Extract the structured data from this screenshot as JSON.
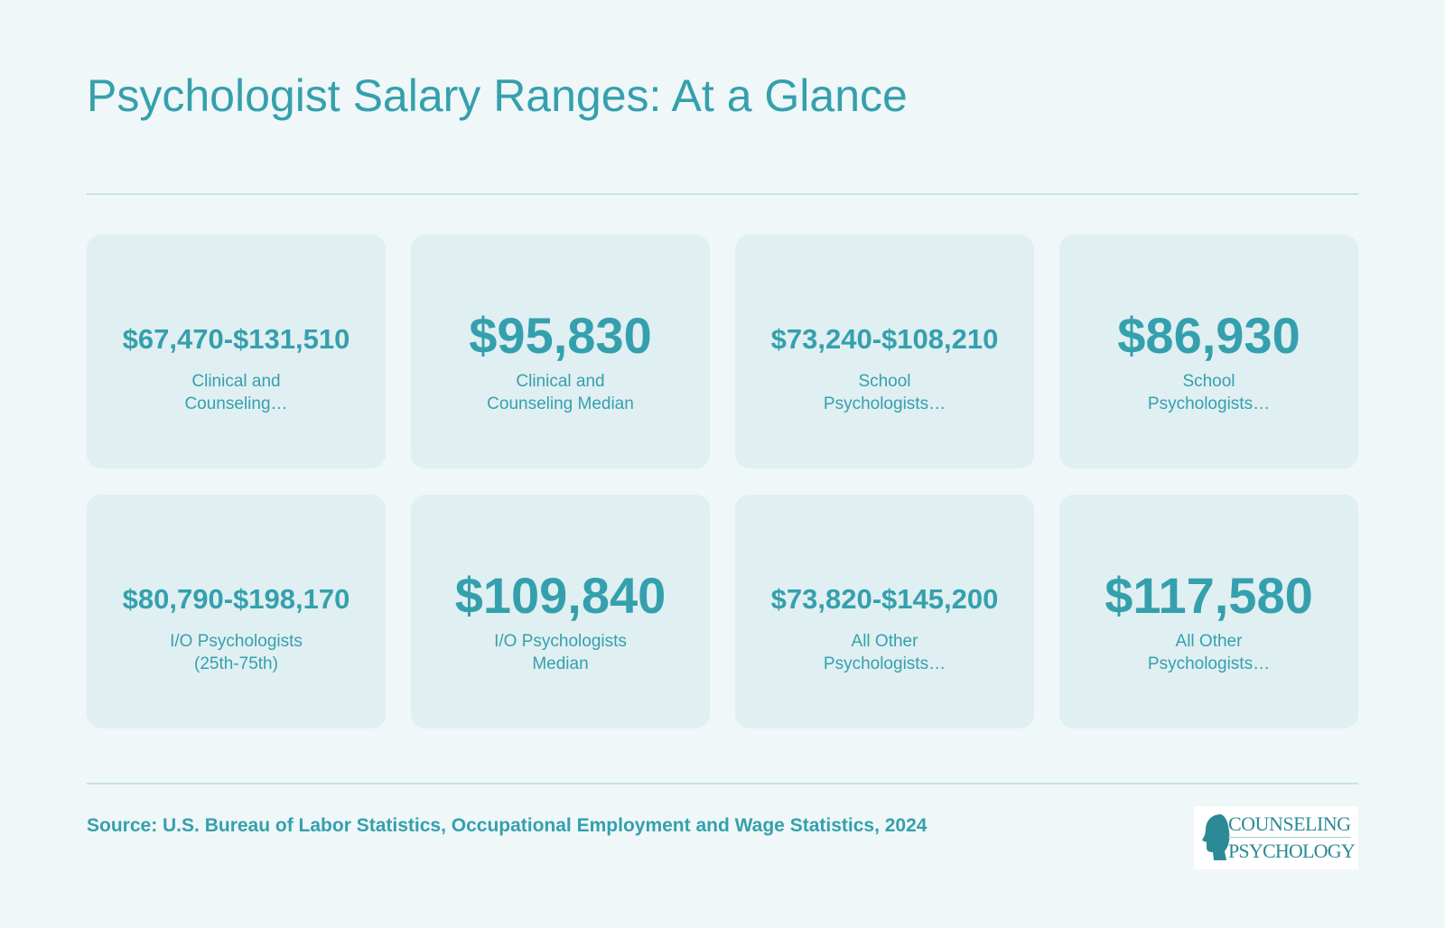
{
  "title": "Psychologist Salary Ranges: At a Glance",
  "cards": [
    {
      "value": "$67,470-$131,510",
      "label_line1": "Clinical and",
      "label_line2": "Counseling…"
    },
    {
      "value": "$95,830",
      "label_line1": "Clinical and",
      "label_line2": "Counseling Median"
    },
    {
      "value": "$73,240-$108,210",
      "label_line1": "School",
      "label_line2": "Psychologists…"
    },
    {
      "value": "$86,930",
      "label_line1": "School",
      "label_line2": "Psychologists…"
    },
    {
      "value": "$80,790-$198,170",
      "label_line1": "I/O Psychologists",
      "label_line2": "(25th-75th)"
    },
    {
      "value": "$109,840",
      "label_line1": "I/O Psychologists",
      "label_line2": "Median"
    },
    {
      "value": "$73,820-$145,200",
      "label_line1": "All Other",
      "label_line2": "Psychologists…"
    },
    {
      "value": "$117,580",
      "label_line1": "All Other",
      "label_line2": "Psychologists…"
    }
  ],
  "source": "Source: U.S. Bureau of Labor Statistics, Occupational Employment and Wage Statistics, 2024",
  "logo": {
    "line1": "COUNSELING",
    "line2": "PSYCHOLOGY"
  },
  "colors": {
    "background": "#eff7f8",
    "card": "#e0eff2",
    "accent": "#35a0ad",
    "rule": "#c9e2e6"
  }
}
